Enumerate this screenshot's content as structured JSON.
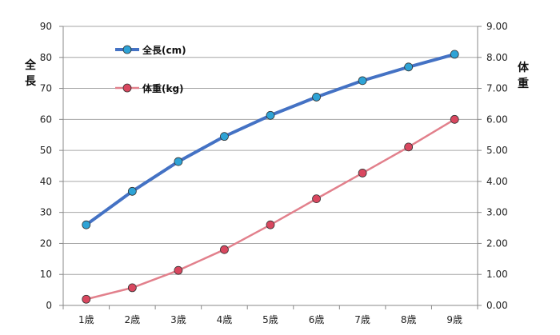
{
  "chart_data": {
    "type": "line",
    "categories": [
      "1歳",
      "2歳",
      "3歳",
      "4歳",
      "5歳",
      "6歳",
      "7歳",
      "8歳",
      "9歳"
    ],
    "y_left": {
      "label": "全長",
      "ylim": [
        0,
        90
      ],
      "ticks": [
        "0",
        "10",
        "20",
        "30",
        "40",
        "50",
        "60",
        "70",
        "80",
        "90"
      ]
    },
    "y_right": {
      "label": "体重",
      "ylim": [
        0,
        9
      ],
      "ticks": [
        "0.00",
        "1.00",
        "2.00",
        "3.00",
        "4.00",
        "5.00",
        "6.00",
        "7.00",
        "8.00",
        "9.00"
      ]
    },
    "series": [
      {
        "name": "全長(cm)",
        "axis": "left",
        "color": "#4472C4",
        "marker_color": "#2EA3D6",
        "values": [
          26,
          36.8,
          46.4,
          54.5,
          61.3,
          67.2,
          72.5,
          76.9,
          81
        ]
      },
      {
        "name": "体重(kg)",
        "axis": "right",
        "color": "#E2808C",
        "marker_color": "#D9475F",
        "values": [
          0.2,
          0.57,
          1.13,
          1.8,
          2.6,
          3.44,
          4.27,
          5.11,
          6.0
        ]
      }
    ],
    "grid": true,
    "legend_position": "top-left"
  }
}
